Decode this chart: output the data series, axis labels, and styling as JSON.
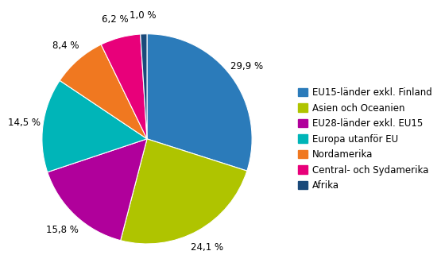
{
  "labels": [
    "EU15-länder exkl. Finland",
    "Asien och Oceanien",
    "EU28-länder exkl. EU15",
    "Europa utanför EU",
    "Nordamerika",
    "Central- och Sydamerika",
    "Afrika"
  ],
  "values": [
    29.9,
    24.1,
    15.8,
    14.5,
    8.4,
    6.2,
    1.0
  ],
  "colors": [
    "#2b7bba",
    "#afc400",
    "#b0009b",
    "#00b5b8",
    "#f07820",
    "#e8007a",
    "#1a4a7a"
  ],
  "pct_labels": [
    "29,9 %",
    "24,1 %",
    "15,8 %",
    "14,5 %",
    "8,4 %",
    "6,2 %",
    "1,0 %"
  ],
  "label_fontsize": 8.5,
  "legend_fontsize": 8.5,
  "startangle": 90
}
